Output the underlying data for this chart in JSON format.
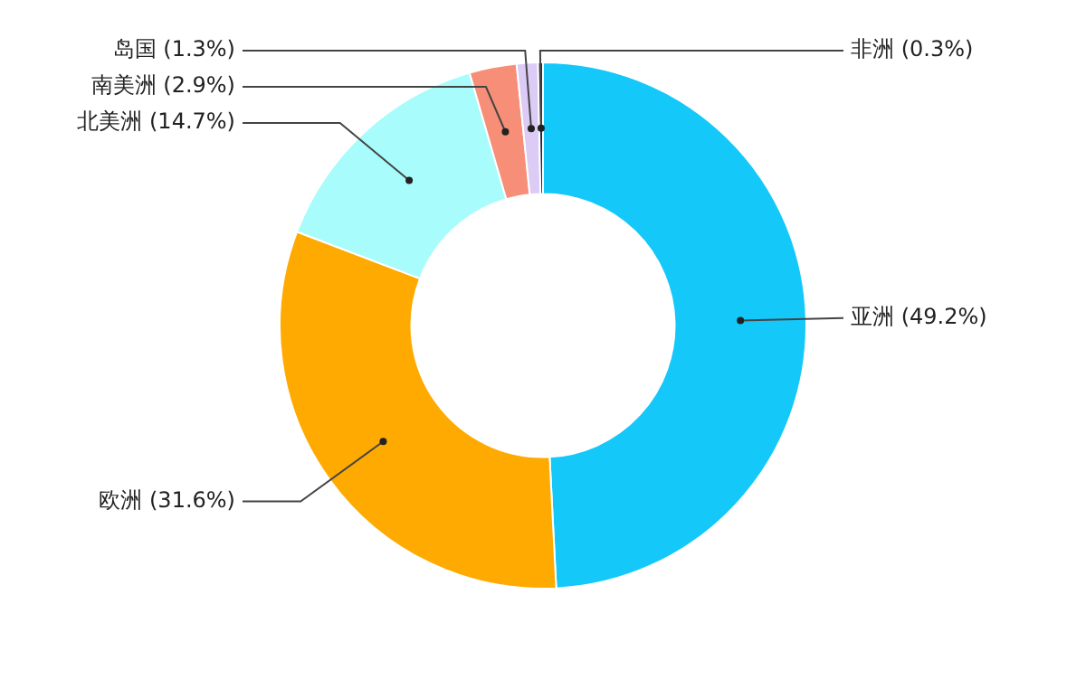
{
  "chart_data": {
    "type": "donut",
    "categories": [
      "亚洲",
      "欧洲",
      "北美洲",
      "南美洲",
      "岛国",
      "非洲"
    ],
    "values": [
      49.2,
      31.6,
      14.7,
      2.9,
      1.3,
      0.3
    ],
    "value_labels": [
      "(49.2%)",
      "(31.6%)",
      "(14.7%)",
      "(2.9%)",
      "(1.3%)",
      "(0.3%)"
    ],
    "colors": [
      "#14c8fa",
      "#ffaa00",
      "#a8fcfc",
      "#f78f78",
      "#dccbf5",
      "#1a2a4a"
    ],
    "legend": false
  }
}
